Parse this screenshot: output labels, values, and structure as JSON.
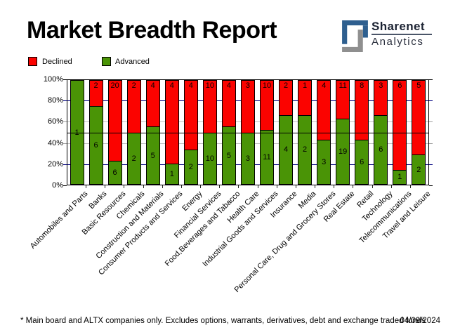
{
  "header": {
    "title": "Market Breadth Report",
    "logo_name": "Sharenet",
    "logo_sub": "Analytics",
    "logo_blue": "#2e5f8f",
    "logo_gray": "#8f8f8f"
  },
  "legend": [
    {
      "label": "Declined",
      "color": "#fb0300"
    },
    {
      "label": "Advanced",
      "color": "#4a9406"
    }
  ],
  "chart_data": {
    "type": "bar",
    "stacked": true,
    "percent_stacked": true,
    "categories": [
      "Automobiles and Parts",
      "Banks",
      "Basic Resources",
      "Chemicals",
      "Construction and Materials",
      "Consumer Products and Services",
      "Energy",
      "Financial Services",
      "Food,Beverages and Tabacco",
      "Health Care",
      "Industrial Goods and Services",
      "Insurance",
      "Media",
      "Personal Care, Drug and Grocery Stores",
      "Real Estate",
      "Retail",
      "Technology",
      "Telecommunications",
      "Travel and Leisure"
    ],
    "series": [
      {
        "name": "Declined",
        "color": "#fb0300",
        "values": [
          0,
          2,
          20,
          2,
          4,
          4,
          4,
          10,
          4,
          3,
          10,
          2,
          1,
          4,
          11,
          8,
          3,
          6,
          5
        ]
      },
      {
        "name": "Advanced",
        "color": "#4a9406",
        "values": [
          1,
          6,
          6,
          2,
          5,
          1,
          2,
          10,
          5,
          3,
          11,
          4,
          2,
          3,
          19,
          6,
          6,
          1,
          2
        ]
      }
    ],
    "ylim": [
      0,
      100
    ],
    "yticks": [
      {
        "label": "100%",
        "pct": 100
      },
      {
        "label": "80%",
        "pct": 80
      },
      {
        "label": "60%",
        "pct": 60
      },
      {
        "label": "40%",
        "pct": 40
      },
      {
        "label": "20%",
        "pct": 20
      },
      {
        "label": "0%",
        "pct": 0
      }
    ],
    "layout": {
      "gridlines": [
        {
          "pct": 80,
          "color": "#000080"
        },
        {
          "pct": 60,
          "color": "#c0c0c0"
        },
        {
          "pct": 40,
          "color": "#c0c0c0"
        },
        {
          "pct": 20,
          "color": "#000080"
        }
      ],
      "mid_line": {
        "pct": 50,
        "color": "#000000"
      },
      "edge_ticks": [
        {
          "pct": 100,
          "color": "#000000"
        },
        {
          "pct": 80,
          "color": "#000080"
        },
        {
          "pct": 60,
          "color": "#a0a0a0"
        },
        {
          "pct": 40,
          "color": "#a0a0a0"
        },
        {
          "pct": 20,
          "color": "#000080"
        },
        {
          "pct": 0,
          "color": "#000000"
        }
      ],
      "legend_position": "top-left",
      "grid": true
    }
  },
  "footer": {
    "note": "* Main board and ALTX companies only. Excludes options, warrants, derivatives, debt and exchange traded funds",
    "date": "04/09/2024"
  }
}
